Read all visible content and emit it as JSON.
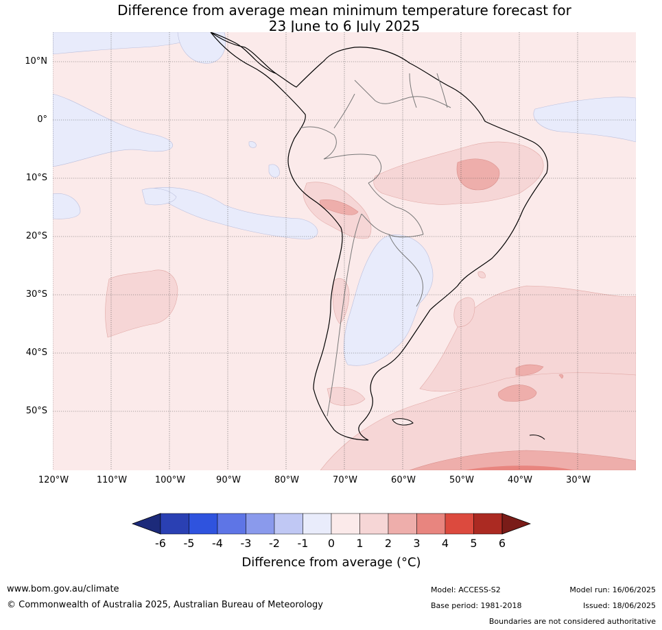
{
  "title": {
    "line1": "Difference from average mean minimum temperature forecast for",
    "line2": "23 June to 6 July 2025"
  },
  "map": {
    "lat_labels": [
      "10°N",
      "0°",
      "10°S",
      "20°S",
      "30°S",
      "40°S",
      "50°S"
    ],
    "lon_labels": [
      "120°W",
      "110°W",
      "100°W",
      "90°W",
      "80°W",
      "70°W",
      "60°W",
      "50°W",
      "40°W",
      "30°W"
    ],
    "background_anomaly_class": "0 to 1",
    "regions": [
      {
        "name": "Southern Ocean band",
        "class": "1 to 2"
      },
      {
        "name": "South Atlantic cooler strip",
        "class": "1 to 2"
      },
      {
        "name": "Eastern Brazil",
        "class": "1 to 2"
      },
      {
        "name": "Eastern Brazil core",
        "class": "2 to 3"
      },
      {
        "name": "Central Andes / Bolivia",
        "class": "1 to 2"
      },
      {
        "name": "Southern Peru",
        "class": "2 to 3"
      },
      {
        "name": "Argentina interior",
        "class": "-1 to 0"
      },
      {
        "name": "Eastern Pacific",
        "class": "-1 to 0"
      },
      {
        "name": "South Pacific warm patch",
        "class": "1 to 2"
      },
      {
        "name": "South Atlantic patches",
        "class": "2 to 3"
      }
    ]
  },
  "colorbar": {
    "ticks": [
      "-6",
      "-5",
      "-4",
      "-3",
      "-2",
      "-1",
      "0",
      "1",
      "2",
      "3",
      "4",
      "5",
      "6"
    ],
    "colors": [
      "#1c2a7a",
      "#2a40b3",
      "#2f53de",
      "#5e75e6",
      "#8a9aec",
      "#c0c8f4",
      "#e9ecfb",
      "#fbeaea",
      "#f6d6d6",
      "#eeaeab",
      "#e8857f",
      "#dc4a3e",
      "#ab2a22",
      "#7a1c18"
    ],
    "label": "Difference from average (°C)"
  },
  "footer": {
    "url": "www.bom.gov.au/climate",
    "copyright": "© Commonwealth of Australia 2025, Australian Bureau of Meteorology",
    "model": "Model: ACCESS-S2",
    "base_period": "Base period: 1981-2018",
    "model_run": "Model run: 16/06/2025",
    "issued": "Issued: 18/06/2025",
    "boundaries_note": "Boundaries are not considered authoritative"
  }
}
